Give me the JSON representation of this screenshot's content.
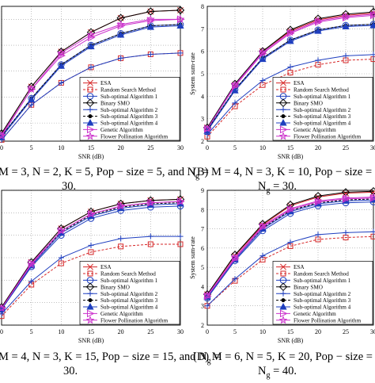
{
  "chart_data": [
    {
      "type": "line",
      "panel": "A",
      "x": [
        0,
        5,
        10,
        15,
        20,
        25,
        30
      ],
      "xlabel": "SNR (dB)",
      "ylabel": "",
      "xlim": [
        0,
        30
      ],
      "ylim": [
        3.3,
        8.5
      ],
      "xticks": [
        "0",
        "5",
        "10",
        "15",
        "20",
        "25",
        "30"
      ],
      "yticks": [],
      "legend_position": "bottom-right",
      "grid": true,
      "series": [
        {
          "name": "ESA",
          "color": "#d62728",
          "marker": "x",
          "dash": "",
          "values": [
            3.6,
            5.4,
            6.75,
            7.5,
            8.05,
            8.3,
            8.35
          ]
        },
        {
          "name": "Random Search Method",
          "color": "#d62728",
          "marker": "square",
          "dash": "3,2",
          "values": [
            3.35,
            4.7,
            5.55,
            6.15,
            6.5,
            6.65,
            6.7
          ]
        },
        {
          "name": "Sub-optimal Algorithm 1",
          "color": "#1f3fbf",
          "marker": "circle",
          "dash": "",
          "values": [
            3.5,
            4.95,
            6.25,
            7.0,
            7.45,
            7.75,
            7.8
          ]
        },
        {
          "name": "Binary SMO",
          "color": "#000000",
          "marker": "diamond",
          "dash": "",
          "values": [
            3.6,
            5.4,
            6.75,
            7.5,
            8.05,
            8.3,
            8.35
          ]
        },
        {
          "name": "Sub-optimal Algorithm 2",
          "color": "#1f3fbf",
          "marker": "plus",
          "dash": "",
          "values": [
            3.35,
            4.7,
            5.55,
            6.15,
            6.5,
            6.65,
            6.7
          ]
        },
        {
          "name": "Sub-optimal Algorithm 3",
          "color": "#000000",
          "marker": "dot",
          "dash": "3,2",
          "values": [
            3.5,
            4.95,
            6.25,
            7.0,
            7.45,
            7.75,
            7.8
          ]
        },
        {
          "name": "Sub-optimal Algorithm 4",
          "color": "#1f3fbf",
          "marker": "triangle-up",
          "dash": "",
          "values": [
            3.45,
            4.9,
            6.2,
            6.95,
            7.4,
            7.7,
            7.75
          ]
        },
        {
          "name": "Genetic Algorithm",
          "color": "#cc33cc",
          "marker": "triangle-right",
          "dash": "",
          "values": [
            3.55,
            5.3,
            6.6,
            7.3,
            7.75,
            7.95,
            8.0
          ]
        },
        {
          "name": "Flower Pollination Algorithm",
          "color": "#cc33cc",
          "marker": "star",
          "dash": "",
          "values": [
            3.5,
            5.3,
            6.7,
            7.4,
            7.8,
            8.0,
            8.0
          ]
        }
      ]
    },
    {
      "type": "line",
      "panel": "B",
      "x": [
        0,
        5,
        10,
        15,
        20,
        25,
        30
      ],
      "xlabel": "SNR (dB)",
      "ylabel": "System sum-rate",
      "xlim": [
        0,
        30
      ],
      "ylim": [
        2,
        8
      ],
      "xticks": [
        "0",
        "5",
        "10",
        "15",
        "20",
        "25",
        "30"
      ],
      "yticks": [
        "2",
        "3",
        "4",
        "5",
        "6",
        "7",
        "8"
      ],
      "legend_position": "bottom-right",
      "grid": true,
      "series": [
        {
          "name": "ESA",
          "color": "#d62728",
          "marker": "x",
          "dash": "",
          "values": [
            2.6,
            4.5,
            6.0,
            6.9,
            7.4,
            7.6,
            7.7
          ]
        },
        {
          "name": "Random Search Method",
          "color": "#d62728",
          "marker": "square",
          "dash": "3,2",
          "values": [
            2.2,
            3.55,
            4.5,
            5.05,
            5.4,
            5.6,
            5.65
          ]
        },
        {
          "name": "Sub-optimal Algorithm 1",
          "color": "#1f3fbf",
          "marker": "circle",
          "dash": "",
          "values": [
            2.5,
            4.3,
            5.7,
            6.5,
            6.95,
            7.15,
            7.2
          ]
        },
        {
          "name": "Binary SMO",
          "color": "#000000",
          "marker": "diamond",
          "dash": "",
          "values": [
            2.6,
            4.55,
            6.0,
            6.95,
            7.45,
            7.65,
            7.75
          ]
        },
        {
          "name": "Sub-optimal Algorithm 2",
          "color": "#1f3fbf",
          "marker": "plus",
          "dash": "",
          "values": [
            2.3,
            3.7,
            4.7,
            5.3,
            5.6,
            5.8,
            5.85
          ]
        },
        {
          "name": "Sub-optimal Algorithm 3",
          "color": "#000000",
          "marker": "dot",
          "dash": "3,2",
          "values": [
            2.5,
            4.3,
            5.7,
            6.5,
            6.95,
            7.15,
            7.2
          ]
        },
        {
          "name": "Sub-optimal Algorithm 4",
          "color": "#1f3fbf",
          "marker": "triangle-up",
          "dash": "",
          "values": [
            2.45,
            4.25,
            5.65,
            6.45,
            6.9,
            7.1,
            7.15
          ]
        },
        {
          "name": "Genetic Algorithm",
          "color": "#cc33cc",
          "marker": "triangle-right",
          "dash": "",
          "values": [
            2.55,
            4.45,
            5.9,
            6.8,
            7.3,
            7.5,
            7.6
          ]
        },
        {
          "name": "Flower Pollination Algorithm",
          "color": "#cc33cc",
          "marker": "star",
          "dash": "",
          "values": [
            2.55,
            4.5,
            5.95,
            6.85,
            7.35,
            7.55,
            7.65
          ]
        }
      ]
    },
    {
      "type": "line",
      "panel": "C",
      "x": [
        0,
        5,
        10,
        15,
        20,
        25,
        30
      ],
      "xlabel": "SNR (dB)",
      "ylabel": "",
      "xlim": [
        0,
        30
      ],
      "ylim": [
        2,
        8
      ],
      "xticks": [
        "0",
        "5",
        "10",
        "15",
        "20",
        "25",
        "30"
      ],
      "yticks": [],
      "legend_position": "bottom-right",
      "grid": true,
      "series": [
        {
          "name": "ESA",
          "color": "#d62728",
          "marker": "x",
          "dash": "",
          "values": [
            2.8,
            4.8,
            6.3,
            7.05,
            7.4,
            7.55,
            7.6
          ]
        },
        {
          "name": "Random Search Method",
          "color": "#d62728",
          "marker": "square",
          "dash": "3,2",
          "values": [
            2.4,
            3.8,
            4.75,
            5.25,
            5.5,
            5.6,
            5.6
          ]
        },
        {
          "name": "Sub-optimal Algorithm 1",
          "color": "#1f3fbf",
          "marker": "circle",
          "dash": "",
          "values": [
            2.7,
            4.6,
            6.0,
            6.75,
            7.1,
            7.25,
            7.3
          ]
        },
        {
          "name": "Binary SMO",
          "color": "#000000",
          "marker": "diamond",
          "dash": "",
          "values": [
            2.8,
            4.8,
            6.3,
            7.05,
            7.4,
            7.55,
            7.6
          ]
        },
        {
          "name": "Sub-optimal Algorithm 2",
          "color": "#1f3fbf",
          "marker": "plus",
          "dash": "",
          "values": [
            2.5,
            3.95,
            5.0,
            5.55,
            5.85,
            5.95,
            5.95
          ]
        },
        {
          "name": "Sub-optimal Algorithm 3",
          "color": "#000000",
          "marker": "dot",
          "dash": "3,2",
          "values": [
            2.75,
            4.7,
            6.15,
            6.9,
            7.25,
            7.4,
            7.45
          ]
        },
        {
          "name": "Sub-optimal Algorithm 4",
          "color": "#1f3fbf",
          "marker": "triangle-up",
          "dash": "",
          "values": [
            2.7,
            4.65,
            6.1,
            6.85,
            7.2,
            7.35,
            7.4
          ]
        },
        {
          "name": "Genetic Algorithm",
          "color": "#cc33cc",
          "marker": "triangle-right",
          "dash": "",
          "values": [
            2.75,
            4.75,
            6.2,
            6.95,
            7.3,
            7.45,
            7.5
          ]
        },
        {
          "name": "Flower Pollination Algorithm",
          "color": "#cc33cc",
          "marker": "star",
          "dash": "",
          "values": [
            2.75,
            4.7,
            6.2,
            6.95,
            7.3,
            7.45,
            7.5
          ]
        }
      ]
    },
    {
      "type": "line",
      "panel": "D",
      "x": [
        0,
        5,
        10,
        15,
        20,
        25,
        30
      ],
      "xlabel": "SNR (dB)",
      "ylabel": "System sum-rate",
      "xlim": [
        0,
        30
      ],
      "ylim": [
        2,
        9
      ],
      "xticks": [
        "0",
        "5",
        "10",
        "15",
        "20",
        "25",
        "30"
      ],
      "yticks": [
        "2",
        "3",
        "4",
        "5",
        "6",
        "7",
        "8",
        "9"
      ],
      "legend_position": "bottom-right",
      "grid": true,
      "series": [
        {
          "name": "ESA",
          "color": "#d62728",
          "marker": "x",
          "dash": "",
          "values": [
            3.6,
            5.6,
            7.2,
            8.2,
            8.65,
            8.85,
            8.9
          ]
        },
        {
          "name": "Random Search Method",
          "color": "#d62728",
          "marker": "square",
          "dash": "3,2",
          "values": [
            3.0,
            4.3,
            5.4,
            6.1,
            6.45,
            6.55,
            6.6
          ]
        },
        {
          "name": "Sub-optimal Algorithm 1",
          "color": "#1f3fbf",
          "marker": "circle",
          "dash": "",
          "values": [
            3.4,
            5.35,
            6.9,
            7.8,
            8.2,
            8.35,
            8.4
          ]
        },
        {
          "name": "Binary SMO",
          "color": "#000000",
          "marker": "diamond",
          "dash": "",
          "values": [
            3.6,
            5.65,
            7.25,
            8.25,
            8.7,
            8.9,
            8.95
          ]
        },
        {
          "name": "Sub-optimal Algorithm 2",
          "color": "#1f3fbf",
          "marker": "plus",
          "dash": "",
          "values": [
            3.0,
            4.4,
            5.6,
            6.3,
            6.7,
            6.8,
            6.85
          ]
        },
        {
          "name": "Sub-optimal Algorithm 3",
          "color": "#000000",
          "marker": "dot",
          "dash": "3,2",
          "values": [
            3.5,
            5.5,
            7.05,
            7.95,
            8.35,
            8.5,
            8.55
          ]
        },
        {
          "name": "Sub-optimal Algorithm 4",
          "color": "#1f3fbf",
          "marker": "triangle-up",
          "dash": "",
          "values": [
            3.45,
            5.4,
            7.0,
            7.9,
            8.3,
            8.45,
            8.5
          ]
        },
        {
          "name": "Genetic Algorithm",
          "color": "#cc33cc",
          "marker": "triangle-right",
          "dash": "",
          "values": [
            3.5,
            5.45,
            7.1,
            8.0,
            8.4,
            8.55,
            8.6
          ]
        },
        {
          "name": "Flower Pollination Algorithm",
          "color": "#cc33cc",
          "marker": "star",
          "dash": "",
          "values": [
            3.55,
            5.5,
            7.15,
            8.05,
            8.45,
            8.6,
            8.65
          ]
        }
      ]
    }
  ],
  "captions": {
    "a": {
      "line1": "M = 3, N = 2, K = 5, Pop − size = 5, and N",
      "sub": "g",
      "tail": " =",
      "line2": "30."
    },
    "b": {
      "line1": "(B) M = 4, N = 3, K = 10, Pop − size = 10,",
      "line2": "N",
      "sub": "g",
      "tail": " = 30."
    },
    "c": {
      "line1": "M = 4, N = 3, K = 15, Pop − size = 15, and N",
      "sub": "g",
      "tail": " =",
      "line2": "30."
    },
    "d": {
      "line1": "(D) M = 6, N = 5, K = 20, Pop − size = 20,",
      "line2": "N",
      "sub": "g",
      "tail": " = 40."
    }
  }
}
